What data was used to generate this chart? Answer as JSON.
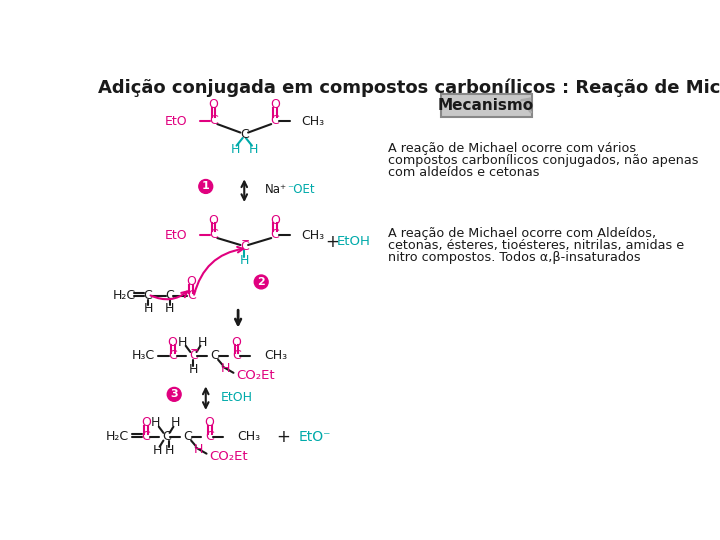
{
  "title": "Adição conjugada em compostos carbonílicos : Reação de Michael",
  "title_fontsize": 13,
  "title_fontweight": "bold",
  "bg_color": "#ffffff",
  "mecanismo_label": "Mecanismo",
  "text1_line1": "A reação de Michael ocorre com vários",
  "text1_line2": "compostos carbonílicos conjugados, não apenas",
  "text1_line3": "com aldeídos e cetonas",
  "text2_line1": "A reação de Michael ocorre com Aldeídos,",
  "text2_line2": "cetonas, ésteres, tioésteres, nitrilas, amidas e",
  "text2_line3": "nitro compostos. Todos α,β-insaturados",
  "pink_color": "#e0007f",
  "cyan_color": "#00aaaa",
  "dark_color": "#1a1a1a",
  "mec_box_color": "#c8c8c8",
  "step_circle_color": "#e0007f"
}
